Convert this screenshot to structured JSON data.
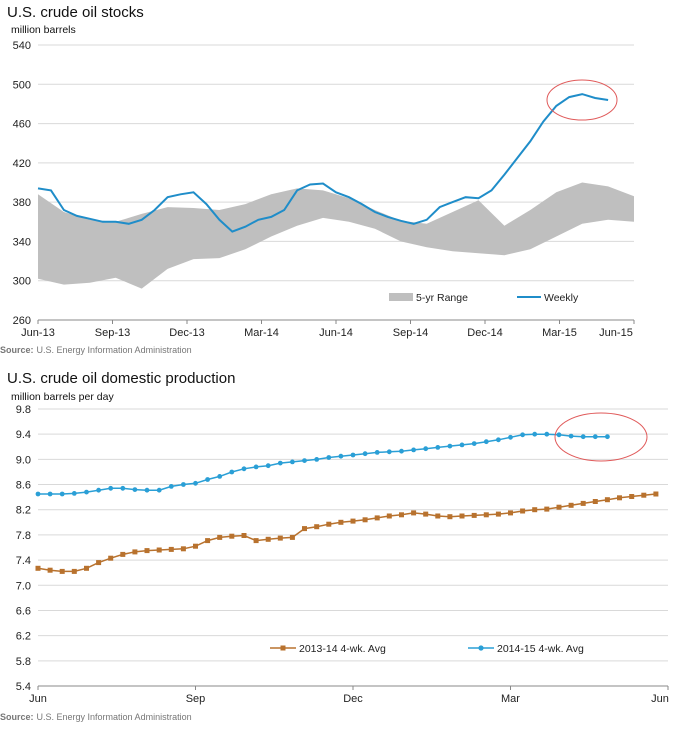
{
  "chart_data": [
    {
      "type": "area",
      "title": "U.S. crude oil stocks",
      "ylabel": "million barrels",
      "ylim": [
        260,
        540
      ],
      "yticks": [
        260,
        300,
        340,
        380,
        420,
        460,
        500,
        540
      ],
      "xticks": [
        "Jun-13",
        "Sep-13",
        "Dec-13",
        "Mar-14",
        "Jun-14",
        "Sep-14",
        "Dec-14",
        "Mar-15",
        "Jun-15"
      ],
      "grid": true,
      "legend_position": "bottom-right",
      "source_label": "Source:",
      "source_text": "U.S. Energy Information Administration",
      "series": [
        {
          "name": "5-yr Range",
          "color": "#bfbfbf",
          "x": [
            0,
            1,
            2,
            3,
            4,
            5,
            6,
            7,
            8,
            9,
            10,
            11,
            12,
            13,
            14,
            15,
            16,
            17,
            18,
            19,
            20,
            21,
            22,
            23
          ],
          "low": [
            302,
            296,
            298,
            303,
            292,
            312,
            322,
            323,
            332,
            345,
            356,
            364,
            360,
            353,
            340,
            334,
            330,
            328,
            326,
            332,
            345,
            358,
            362,
            360
          ],
          "high": [
            388,
            370,
            362,
            360,
            368,
            375,
            374,
            372,
            378,
            388,
            394,
            392,
            384,
            372,
            361,
            358,
            370,
            382,
            356,
            372,
            390,
            400,
            396,
            386
          ]
        },
        {
          "name": "Weekly",
          "color": "#1f8dc9",
          "x": [
            0,
            0.5,
            1,
            1.5,
            2,
            2.5,
            3,
            3.5,
            4,
            4.5,
            5,
            5.5,
            6,
            6.5,
            7,
            7.5,
            8,
            8.5,
            9,
            9.5,
            10,
            10.5,
            11,
            11.5,
            12,
            12.5,
            13,
            13.5,
            14,
            14.5,
            15,
            15.5,
            16,
            16.5,
            17,
            17.5,
            18,
            18.5,
            19,
            19.5,
            20,
            20.5,
            21,
            21.5,
            22
          ],
          "values": [
            394,
            392,
            372,
            366,
            363,
            360,
            360,
            358,
            362,
            372,
            385,
            388,
            390,
            378,
            362,
            350,
            355,
            362,
            365,
            372,
            392,
            398,
            399,
            390,
            385,
            378,
            370,
            365,
            361,
            358,
            362,
            375,
            380,
            385,
            384,
            392,
            408,
            425,
            442,
            462,
            478,
            487,
            490,
            486,
            484
          ]
        }
      ]
    },
    {
      "type": "line",
      "title": "U.S. crude oil domestic production",
      "ylabel": "million barrels per day",
      "ylim": [
        5.4,
        9.8
      ],
      "yticks": [
        "5.4",
        "5.8",
        "6.2",
        "6.6",
        "7.0",
        "7.4",
        "7.8",
        "8.2",
        "8.6",
        "9.0",
        "9.4",
        "9.8"
      ],
      "xticks": [
        "Jun",
        "Sep",
        "Dec",
        "Mar",
        "Jun"
      ],
      "grid": true,
      "legend_position": "bottom",
      "source_label": "Source:",
      "source_text": "U.S. Energy Information Administration",
      "series": [
        {
          "name": "2013-14  4-wk. Avg",
          "color": "#b8722e",
          "marker": "square",
          "x": [
            0,
            1,
            2,
            3,
            4,
            5,
            6,
            7,
            8,
            9,
            10,
            11,
            12,
            13,
            14,
            15,
            16,
            17,
            18,
            19,
            20,
            21,
            22,
            23,
            24,
            25,
            26,
            27,
            28,
            29,
            30,
            31,
            32,
            33,
            34,
            35,
            36,
            37,
            38,
            39,
            40,
            41,
            42,
            43,
            44,
            45,
            46,
            47,
            48,
            49,
            50,
            51
          ],
          "values": [
            7.27,
            7.24,
            7.22,
            7.22,
            7.27,
            7.36,
            7.43,
            7.49,
            7.53,
            7.55,
            7.56,
            7.57,
            7.58,
            7.62,
            7.71,
            7.76,
            7.78,
            7.79,
            7.71,
            7.73,
            7.75,
            7.76,
            7.9,
            7.93,
            7.97,
            8.0,
            8.02,
            8.04,
            8.07,
            8.1,
            8.12,
            8.15,
            8.13,
            8.1,
            8.09,
            8.1,
            8.11,
            8.12,
            8.13,
            8.15,
            8.18,
            8.2,
            8.21,
            8.24,
            8.27,
            8.3,
            8.33,
            8.36,
            8.39,
            8.41,
            8.43,
            8.45
          ]
        },
        {
          "name": "2014-15  4-wk. Avg",
          "color": "#2a9fd6",
          "marker": "circle",
          "x": [
            0,
            1,
            2,
            3,
            4,
            5,
            6,
            7,
            8,
            9,
            10,
            11,
            12,
            13,
            14,
            15,
            16,
            17,
            18,
            19,
            20,
            21,
            22,
            23,
            24,
            25,
            26,
            27,
            28,
            29,
            30,
            31,
            32,
            33,
            34,
            35,
            36,
            37,
            38,
            39,
            40,
            41,
            42,
            43,
            44,
            45,
            46,
            47
          ],
          "values": [
            8.45,
            8.45,
            8.45,
            8.46,
            8.48,
            8.51,
            8.54,
            8.54,
            8.52,
            8.51,
            8.51,
            8.57,
            8.6,
            8.62,
            8.68,
            8.73,
            8.8,
            8.85,
            8.88,
            8.9,
            8.94,
            8.96,
            8.98,
            9.0,
            9.03,
            9.05,
            9.07,
            9.09,
            9.11,
            9.12,
            9.13,
            9.15,
            9.17,
            9.19,
            9.21,
            9.23,
            9.25,
            9.28,
            9.31,
            9.35,
            9.39,
            9.4,
            9.4,
            9.39,
            9.37,
            9.36,
            9.36,
            9.36
          ]
        }
      ]
    }
  ]
}
